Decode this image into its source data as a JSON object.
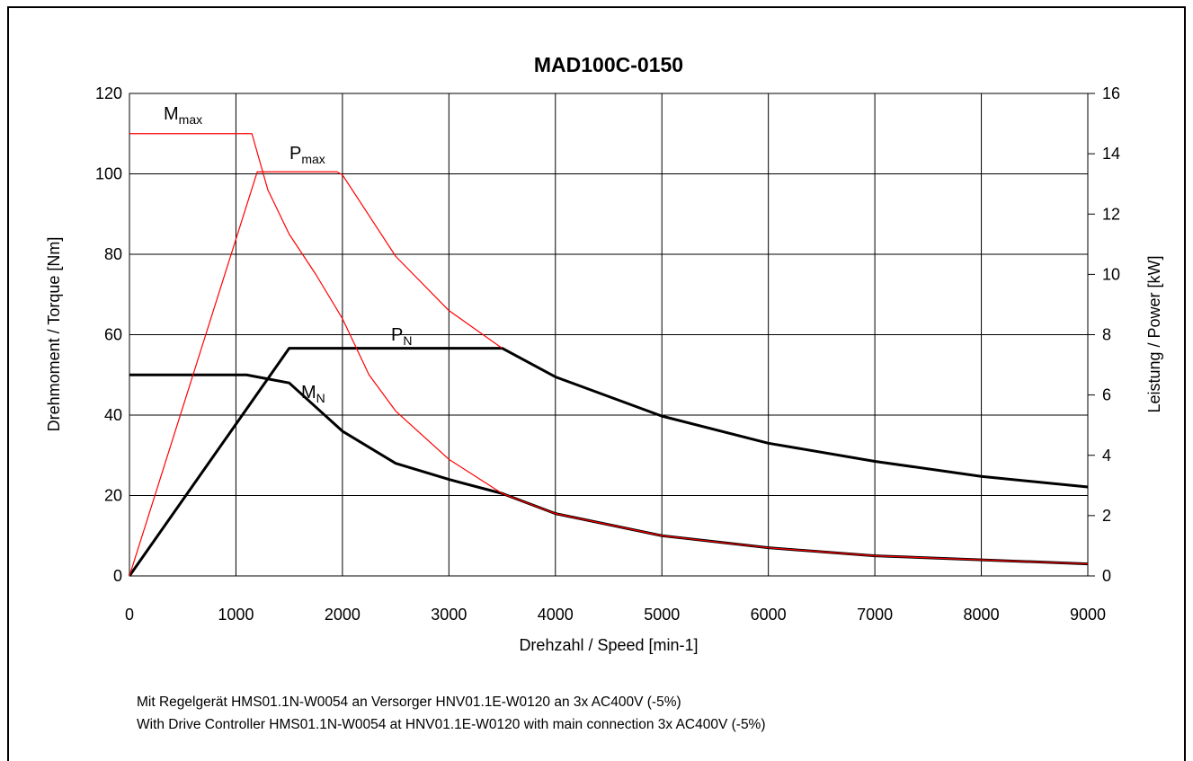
{
  "chart_data": {
    "type": "line",
    "title": "MAD100C-0150",
    "xlabel": "Drehzahl / Speed [min-1]",
    "ylabel": "Drehmoment / Torque [Nm]",
    "y2label": "Leistung / Power [kW]",
    "xlim": [
      0,
      9000
    ],
    "xticks": [
      0,
      1000,
      2000,
      3000,
      4000,
      5000,
      6000,
      7000,
      8000,
      9000
    ],
    "ylim": [
      0,
      120
    ],
    "yticks": [
      0,
      20,
      40,
      60,
      80,
      100,
      120
    ],
    "y2lim": [
      0,
      16
    ],
    "y2ticks": [
      0,
      2,
      4,
      6,
      8,
      10,
      12,
      14,
      16
    ],
    "grid": true,
    "series": [
      {
        "color": "#000000",
        "linewidth": 3,
        "axis": "y",
        "x": [
          0,
          1100,
          1300,
          1500,
          1750,
          2000,
          2500,
          3000,
          3500,
          4000,
          5000,
          6000,
          7000,
          8000,
          9000
        ],
        "values": [
          50,
          50,
          49,
          48,
          42,
          36,
          28,
          24,
          20.5,
          15.5,
          10,
          7,
          5,
          4,
          3
        ]
      },
      {
        "color": "#000000",
        "linewidth": 3,
        "axis": "y2",
        "x": [
          0,
          1500,
          3500,
          4000,
          5000,
          6000,
          7000,
          8000,
          9000
        ],
        "values": [
          0,
          7.55,
          7.55,
          6.6,
          5.3,
          4.4,
          3.8,
          3.3,
          2.95
        ]
      },
      {
        "color": "#ff0000",
        "linewidth": 1.2,
        "axis": "y",
        "x": [
          0,
          1150,
          1300,
          1500,
          1750,
          2000,
          2250,
          2500,
          3000,
          3500,
          4000,
          5000,
          6000,
          7000,
          8000,
          9000
        ],
        "values": [
          110,
          110,
          96,
          85,
          75,
          64,
          50,
          41,
          29,
          20.5,
          15.5,
          10,
          7,
          5,
          4,
          3
        ]
      },
      {
        "color": "#ff0000",
        "linewidth": 1.2,
        "axis": "y2",
        "x": [
          0,
          1200,
          1950,
          2000,
          2500,
          3000,
          3500
        ],
        "values": [
          0,
          13.4,
          13.4,
          13.3,
          10.6,
          8.8,
          7.55
        ]
      }
    ],
    "annotations": [
      {
        "text": "M",
        "sub": "max"
      },
      {
        "text": "P",
        "sub": "max"
      },
      {
        "text": "P",
        "sub": "N"
      },
      {
        "text": "M",
        "sub": "N"
      }
    ],
    "notes": [
      "Mit Regelgerät HMS01.1N-W0054 an Versorger HNV01.1E-W0120 an 3x AC400V (-5%)",
      "With Drive Controller HMS01.1N-W0054 at HNV01.1E-W0120 with main connection 3x AC400V (-5%)"
    ]
  }
}
